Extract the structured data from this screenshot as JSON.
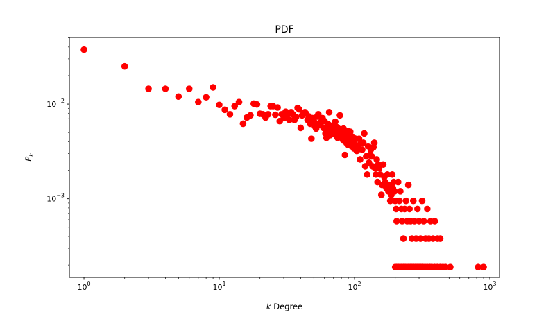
{
  "chart_data": {
    "type": "scatter",
    "title": "PDF",
    "xlabel": "k Degree",
    "xlabel_parts": {
      "italic": "k",
      "rest": " Degree"
    },
    "ylabel": "P_k",
    "ylabel_parts": {
      "main": "P",
      "sub": "k"
    },
    "xscale": "log",
    "yscale": "log",
    "xlim": [
      0.78,
      1180
    ],
    "ylim": [
      0.000148,
      0.0505
    ],
    "grid": false,
    "marker_color": "#ff0000",
    "x_ticks": [
      {
        "value": 1,
        "base": "10",
        "exp": "0"
      },
      {
        "value": 10,
        "base": "10",
        "exp": "1"
      },
      {
        "value": 100,
        "base": "10",
        "exp": "2"
      },
      {
        "value": 1000,
        "base": "10",
        "exp": "3"
      }
    ],
    "y_ticks": [
      {
        "value": 0.001,
        "base": "10",
        "exp": "−3"
      },
      {
        "value": 0.01,
        "base": "10",
        "exp": "−2"
      }
    ],
    "series": [
      {
        "points": [
          [
            1,
            0.0375
          ],
          [
            2,
            0.025
          ],
          [
            3,
            0.0145
          ],
          [
            4,
            0.0145
          ],
          [
            5,
            0.012
          ],
          [
            6,
            0.0145
          ],
          [
            7,
            0.0105
          ],
          [
            8,
            0.0118
          ],
          [
            9,
            0.015
          ],
          [
            10,
            0.0098
          ],
          [
            11,
            0.0087
          ],
          [
            12,
            0.0078
          ],
          [
            13,
            0.0095
          ],
          [
            14,
            0.0105
          ],
          [
            15,
            0.0062
          ],
          [
            16,
            0.0072
          ],
          [
            17,
            0.0076
          ],
          [
            18,
            0.0101
          ],
          [
            19,
            0.0099
          ],
          [
            20,
            0.0079
          ],
          [
            21,
            0.0078
          ],
          [
            22,
            0.0072
          ],
          [
            23,
            0.0078
          ],
          [
            24,
            0.0095
          ],
          [
            25,
            0.0095
          ],
          [
            26,
            0.0077
          ],
          [
            27,
            0.0092
          ],
          [
            28,
            0.0066
          ],
          [
            29,
            0.0078
          ],
          [
            30,
            0.0071
          ],
          [
            31,
            0.0083
          ],
          [
            32,
            0.0078
          ],
          [
            33,
            0.0068
          ],
          [
            34,
            0.0082
          ],
          [
            35,
            0.0078
          ],
          [
            36,
            0.0068
          ],
          [
            37,
            0.0073
          ],
          [
            38,
            0.0091
          ],
          [
            39,
            0.0088
          ],
          [
            40,
            0.0056
          ],
          [
            41,
            0.0076
          ],
          [
            42,
            0.0079
          ],
          [
            43,
            0.0082
          ],
          [
            44,
            0.0079
          ],
          [
            45,
            0.0068
          ],
          [
            46,
            0.0074
          ],
          [
            47,
            0.0062
          ],
          [
            48,
            0.0043
          ],
          [
            49,
            0.0071
          ],
          [
            50,
            0.0066
          ],
          [
            51,
            0.0058
          ],
          [
            52,
            0.0055
          ],
          [
            53,
            0.0074
          ],
          [
            54,
            0.0078
          ],
          [
            55,
            0.0063
          ],
          [
            56,
            0.006
          ],
          [
            57,
            0.0066
          ],
          [
            58,
            0.0071
          ],
          [
            59,
            0.0056
          ],
          [
            60,
            0.0066
          ],
          [
            61,
            0.0049
          ],
          [
            62,
            0.0044
          ],
          [
            63,
            0.0053
          ],
          [
            64,
            0.0061
          ],
          [
            65,
            0.0082
          ],
          [
            66,
            0.0047
          ],
          [
            67,
            0.0056
          ],
          [
            68,
            0.0059
          ],
          [
            69,
            0.0052
          ],
          [
            70,
            0.0054
          ],
          [
            71,
            0.0048
          ],
          [
            72,
            0.0065
          ],
          [
            73,
            0.0051
          ],
          [
            74,
            0.0057
          ],
          [
            75,
            0.0044
          ],
          [
            76,
            0.0055
          ],
          [
            77,
            0.0047
          ],
          [
            78,
            0.0076
          ],
          [
            79,
            0.0052
          ],
          [
            80,
            0.0051
          ],
          [
            81,
            0.0048
          ],
          [
            82,
            0.0042
          ],
          [
            83,
            0.0055
          ],
          [
            84,
            0.0044
          ],
          [
            85,
            0.0029
          ],
          [
            86,
            0.0049
          ],
          [
            87,
            0.0039
          ],
          [
            88,
            0.0046
          ],
          [
            89,
            0.0052
          ],
          [
            90,
            0.0037
          ],
          [
            91,
            0.0048
          ],
          [
            92,
            0.0043
          ],
          [
            93,
            0.0051
          ],
          [
            94,
            0.0039
          ],
          [
            95,
            0.0036
          ],
          [
            96,
            0.0044
          ],
          [
            97,
            0.0045
          ],
          [
            98,
            0.0041
          ],
          [
            99,
            0.0034
          ],
          [
            100,
            0.0039
          ],
          [
            102,
            0.0043
          ],
          [
            104,
            0.0032
          ],
          [
            106,
            0.0036
          ],
          [
            108,
            0.0043
          ],
          [
            110,
            0.0026
          ],
          [
            112,
            0.0039
          ],
          [
            114,
            0.0033
          ],
          [
            116,
            0.0039
          ],
          [
            118,
            0.0049
          ],
          [
            120,
            0.0022
          ],
          [
            122,
            0.0028
          ],
          [
            124,
            0.0018
          ],
          [
            126,
            0.0036
          ],
          [
            128,
            0.0024
          ],
          [
            130,
            0.0029
          ],
          [
            132,
            0.0033
          ],
          [
            134,
            0.0028
          ],
          [
            136,
            0.0022
          ],
          [
            138,
            0.0035
          ],
          [
            140,
            0.0039
          ],
          [
            142,
            0.0021
          ],
          [
            144,
            0.0018
          ],
          [
            146,
            0.0026
          ],
          [
            148,
            0.0015
          ],
          [
            150,
            0.0023
          ],
          [
            152,
            0.0021
          ],
          [
            155,
            0.0018
          ],
          [
            158,
            0.0011
          ],
          [
            160,
            0.0014
          ],
          [
            163,
            0.0023
          ],
          [
            166,
            0.0017
          ],
          [
            169,
            0.0015
          ],
          [
            172,
            0.0013
          ],
          [
            175,
            0.0018
          ],
          [
            178,
            0.0012
          ],
          [
            181,
            0.0014
          ],
          [
            184,
            0.00095
          ],
          [
            187,
            0.0011
          ],
          [
            190,
            0.0018
          ],
          [
            192,
            0.0013
          ],
          [
            195,
            0.0015
          ],
          [
            198,
            0.0012
          ],
          [
            200,
            0.00095
          ],
          [
            203,
            0.00078
          ],
          [
            205,
            0.00058
          ],
          [
            210,
            0.0015
          ],
          [
            214,
            0.00095
          ],
          [
            218,
            0.0012
          ],
          [
            222,
            0.00078
          ],
          [
            225,
            0.00058
          ],
          [
            230,
            0.00038
          ],
          [
            235,
            0.00078
          ],
          [
            240,
            0.00095
          ],
          [
            245,
            0.00058
          ],
          [
            250,
            0.0014
          ],
          [
            255,
            0.00078
          ],
          [
            260,
            0.00058
          ],
          [
            266,
            0.00038
          ],
          [
            272,
            0.00095
          ],
          [
            278,
            0.00058
          ],
          [
            285,
            0.00038
          ],
          [
            292,
            0.00078
          ],
          [
            300,
            0.00058
          ],
          [
            308,
            0.00038
          ],
          [
            316,
            0.00095
          ],
          [
            325,
            0.00058
          ],
          [
            335,
            0.00038
          ],
          [
            345,
            0.00078
          ],
          [
            355,
            0.00038
          ],
          [
            365,
            0.00058
          ],
          [
            380,
            0.00038
          ],
          [
            392,
            0.00058
          ],
          [
            410,
            0.00038
          ],
          [
            430,
            0.00038
          ],
          [
            200,
            0.00019
          ],
          [
            205,
            0.00019
          ],
          [
            211,
            0.00019
          ],
          [
            217,
            0.00019
          ],
          [
            223,
            0.00019
          ],
          [
            230,
            0.00019
          ],
          [
            237,
            0.00019
          ],
          [
            244,
            0.00019
          ],
          [
            251,
            0.00019
          ],
          [
            258,
            0.00019
          ],
          [
            266,
            0.00019
          ],
          [
            274,
            0.00019
          ],
          [
            282,
            0.00019
          ],
          [
            290,
            0.00019
          ],
          [
            300,
            0.00019
          ],
          [
            310,
            0.00019
          ],
          [
            320,
            0.00019
          ],
          [
            332,
            0.00019
          ],
          [
            345,
            0.00019
          ],
          [
            360,
            0.00019
          ],
          [
            372,
            0.00019
          ],
          [
            390,
            0.00019
          ],
          [
            410,
            0.00019
          ],
          [
            430,
            0.00019
          ],
          [
            450,
            0.00019
          ],
          [
            470,
            0.00019
          ],
          [
            510,
            0.00019
          ],
          [
            820,
            0.00019
          ],
          [
            900,
            0.00019
          ]
        ]
      }
    ]
  }
}
